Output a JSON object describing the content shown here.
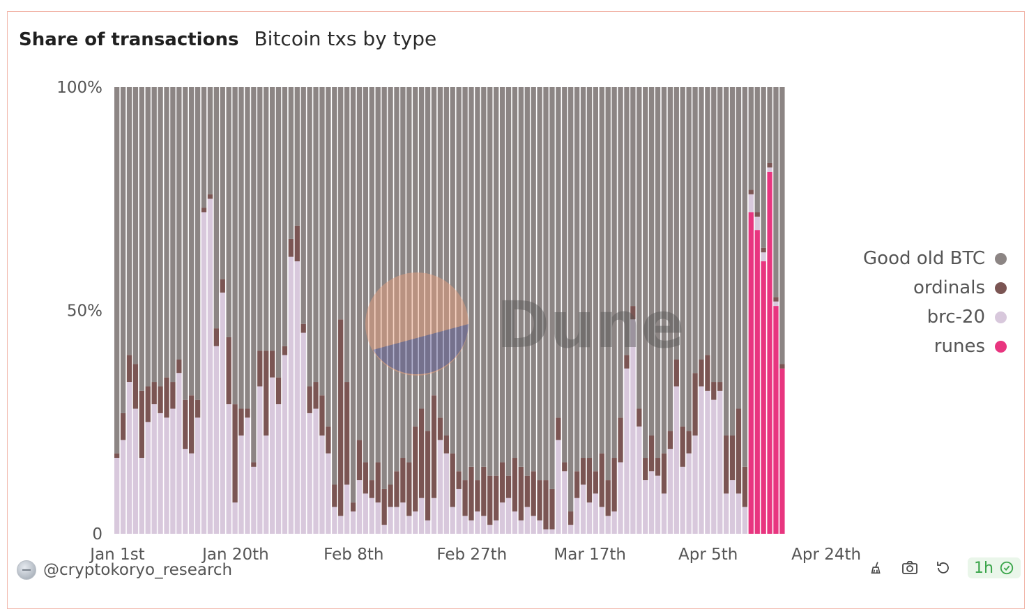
{
  "header": {
    "title": "Share of transactions",
    "subtitle": "Bitcoin txs by type"
  },
  "author": {
    "handle": "@cryptokoryo_research"
  },
  "footer": {
    "refresh_label": "1h",
    "icons": [
      "broom-icon",
      "camera-icon",
      "refresh-icon",
      "check-circle-icon"
    ]
  },
  "watermark": {
    "text": "Dune"
  },
  "colors": {
    "good_old_btc": "#8c8584",
    "ordinals": "#7b5553",
    "brc20": "#d8c8dc",
    "runes": "#e8357f",
    "refresh": "#3aa54a"
  },
  "chart_data": {
    "type": "bar",
    "stacked": true,
    "percent": true,
    "start_date": "2024-01-01",
    "x_tick_labels": [
      "Jan 1st",
      "Jan 20th",
      "Feb 8th",
      "Feb 27th",
      "Mar 17th",
      "Apr 5th",
      "Apr 24th"
    ],
    "y_tick_labels": [
      "0",
      "50%",
      "100%"
    ],
    "ylim": [
      0,
      100
    ],
    "legend_position": "right",
    "series": [
      {
        "name": "Good old BTC",
        "values_note": "remainder to 100%"
      },
      {
        "name": "ordinals"
      },
      {
        "name": "brc-20"
      },
      {
        "name": "runes"
      }
    ],
    "brc20": [
      17,
      21,
      34,
      28,
      17,
      25,
      29,
      27,
      26,
      28,
      36,
      19,
      18,
      26,
      72,
      75,
      42,
      54,
      29,
      7,
      22,
      26,
      15,
      33,
      22,
      35,
      29,
      40,
      62,
      61,
      45,
      27,
      28,
      22,
      18,
      6,
      4,
      11,
      5,
      12,
      9,
      8,
      7,
      2,
      6,
      6,
      7,
      4,
      5,
      8,
      3,
      8,
      21,
      18,
      6,
      10,
      4,
      3,
      5,
      4,
      2,
      3,
      7,
      8,
      5,
      3,
      6,
      4,
      3,
      1,
      1,
      21,
      14,
      2,
      8,
      11,
      7,
      9,
      6,
      4,
      5,
      16,
      37,
      48,
      24,
      12,
      14,
      13,
      9,
      19,
      33,
      15,
      18,
      22,
      33,
      32,
      30,
      32,
      9,
      12,
      9,
      6,
      4,
      3,
      2,
      1,
      1,
      0,
      0,
      4
    ],
    "ordinals": [
      1,
      6,
      6,
      10,
      15,
      8,
      5,
      6,
      9,
      6,
      3,
      11,
      13,
      4,
      1,
      1,
      4,
      3,
      15,
      22,
      6,
      2,
      1,
      8,
      19,
      6,
      6,
      2,
      4,
      8,
      2,
      6,
      6,
      9,
      6,
      5,
      44,
      23,
      2,
      9,
      7,
      4,
      9,
      8,
      5,
      8,
      10,
      12,
      19,
      20,
      20,
      23,
      5,
      4,
      12,
      4,
      8,
      12,
      7,
      11,
      11,
      10,
      9,
      5,
      12,
      12,
      7,
      10,
      9,
      11,
      9,
      5,
      2,
      3,
      6,
      6,
      10,
      5,
      12,
      8,
      12,
      10,
      3,
      3,
      4,
      5,
      8,
      4,
      9,
      4,
      6,
      9,
      5,
      14,
      6,
      8,
      4,
      2,
      13,
      10,
      19,
      9,
      1,
      1,
      1,
      1,
      1,
      1,
      1,
      1
    ],
    "runes": [
      0,
      0,
      0,
      0,
      0,
      0,
      0,
      0,
      0,
      0,
      0,
      0,
      0,
      0,
      0,
      0,
      0,
      0,
      0,
      0,
      0,
      0,
      0,
      0,
      0,
      0,
      0,
      0,
      0,
      0,
      0,
      0,
      0,
      0,
      0,
      0,
      0,
      0,
      0,
      0,
      0,
      0,
      0,
      0,
      0,
      0,
      0,
      0,
      0,
      0,
      0,
      0,
      0,
      0,
      0,
      0,
      0,
      0,
      0,
      0,
      0,
      0,
      0,
      0,
      0,
      0,
      0,
      0,
      0,
      0,
      0,
      0,
      0,
      0,
      0,
      0,
      0,
      0,
      0,
      0,
      0,
      0,
      0,
      0,
      0,
      0,
      0,
      0,
      0,
      0,
      0,
      0,
      0,
      0,
      0,
      0,
      0,
      0,
      0,
      0,
      0,
      0,
      72,
      68,
      61,
      81,
      51,
      37
    ]
  }
}
